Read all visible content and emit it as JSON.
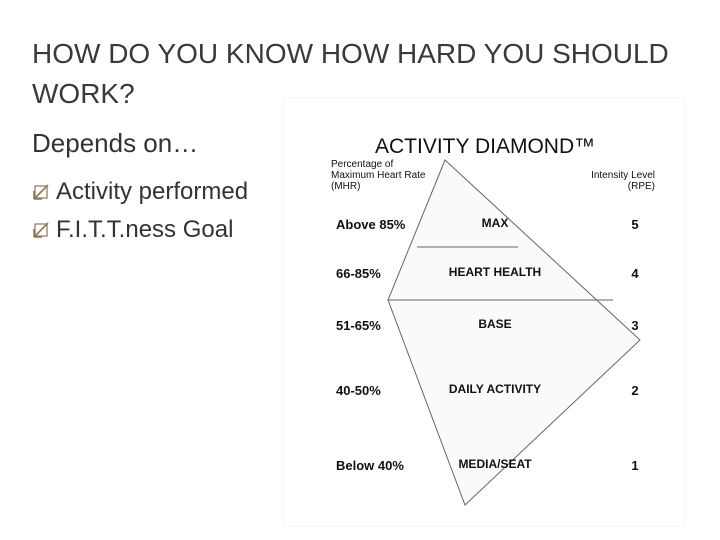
{
  "slide": {
    "title": "HOW DO YOU KNOW HOW HARD YOU SHOULD WORK?",
    "subtitle": "Depends on…",
    "bullets": [
      "Activity performed",
      "F.I.T.T.ness Goal"
    ]
  },
  "diagram": {
    "title": "ACTIVITY DIAMOND™",
    "left_header": [
      "Percentage of",
      "Maximum Heart Rate",
      "(MHR)"
    ],
    "right_header": [
      "Intensity Level",
      "(RPE)"
    ],
    "rows": [
      {
        "percent": "Above 85%",
        "label": "MAX",
        "level": 5
      },
      {
        "percent": "66-85%",
        "label": "HEART HEALTH",
        "level": 4
      },
      {
        "percent": "51-65%",
        "label": "BASE",
        "level": 3
      },
      {
        "percent": "40-50%",
        "label": "DAILY ACTIVITY",
        "level": 2
      },
      {
        "percent": "Below 40%",
        "label": "MEDIA/SEAT",
        "level": 1
      }
    ]
  }
}
